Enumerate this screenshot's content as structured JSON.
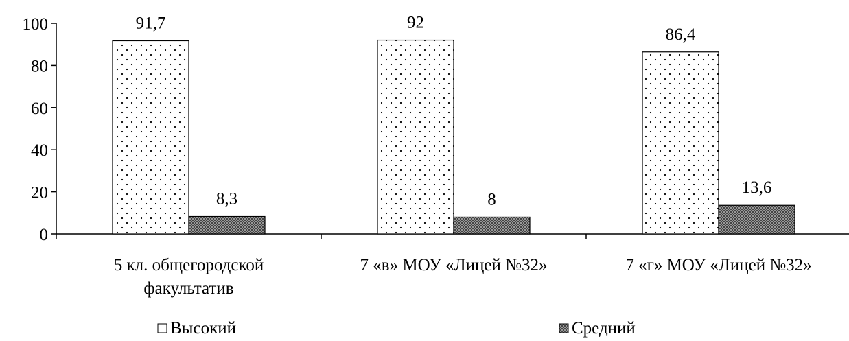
{
  "chart_data": {
    "type": "bar",
    "categories": [
      [
        "5 кл. общегородской",
        "факультатив"
      ],
      [
        "7 «в» МОУ «Лицей №32»"
      ],
      [
        "7 «г» МОУ «Лицей №32»"
      ]
    ],
    "series": [
      {
        "name": "Высокий",
        "values": [
          91.7,
          92,
          86.4
        ],
        "labels": [
          "91,7",
          "92",
          "86,4"
        ],
        "pattern": "dots"
      },
      {
        "name": "Средний",
        "values": [
          8.3,
          8,
          13.6
        ],
        "labels": [
          "8,3",
          "8",
          "13,6"
        ],
        "pattern": "crosshatch"
      }
    ],
    "yticks": [
      0,
      20,
      40,
      60,
      80,
      100
    ],
    "ylim": [
      0,
      100
    ],
    "title": "",
    "xlabel": "",
    "ylabel": "",
    "grid": false,
    "legend_position": "bottom",
    "colors": {
      "axis": "#000000",
      "bar_fill": "#ffffff",
      "bar_stroke": "#000000"
    }
  }
}
